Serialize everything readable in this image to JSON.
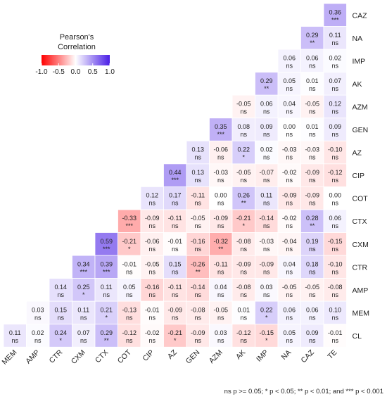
{
  "chart_data": {
    "type": "heatmap",
    "subtype": "lower-triangle correlation matrix",
    "metric": "Pearson's correlation",
    "rows": [
      "CAZ",
      "NA",
      "IMP",
      "AK",
      "AZM",
      "GEN",
      "AZ",
      "CIP",
      "COT",
      "CTX",
      "CXM",
      "CTR",
      "AMP",
      "MEM",
      "CL"
    ],
    "cols": [
      "MEM",
      "AMP",
      "CTR",
      "CXM",
      "CTX",
      "COT",
      "CIP",
      "AZ",
      "GEN",
      "AZM",
      "AK",
      "IMP",
      "NA",
      "CAZ",
      "TE"
    ],
    "values": [
      [
        0.36
      ],
      [
        0.29,
        0.11
      ],
      [
        0.06,
        0.06,
        0.02
      ],
      [
        0.29,
        0.05,
        0.01,
        0.07
      ],
      [
        -0.05,
        0.06,
        0.04,
        -0.05,
        0.12
      ],
      [
        0.35,
        0.08,
        0.09,
        0.0,
        0.01,
        0.09
      ],
      [
        0.13,
        -0.06,
        0.22,
        0.02,
        -0.03,
        -0.03,
        -0.1
      ],
      [
        0.44,
        0.13,
        -0.03,
        -0.05,
        -0.07,
        -0.02,
        -0.09,
        -0.12
      ],
      [
        0.12,
        0.17,
        -0.11,
        0.0,
        0.26,
        0.11,
        -0.09,
        -0.09,
        0.0
      ],
      [
        -0.33,
        -0.09,
        -0.11,
        -0.05,
        -0.09,
        -0.21,
        -0.14,
        -0.02,
        0.28,
        0.06
      ],
      [
        0.59,
        -0.21,
        -0.06,
        -0.01,
        -0.16,
        -0.32,
        -0.08,
        -0.03,
        -0.04,
        0.19,
        -0.15
      ],
      [
        0.34,
        0.39,
        -0.01,
        -0.05,
        0.15,
        -0.26,
        -0.11,
        -0.09,
        -0.09,
        0.04,
        0.18,
        -0.1
      ],
      [
        0.14,
        0.25,
        0.11,
        0.05,
        -0.16,
        -0.11,
        -0.14,
        0.04,
        -0.08,
        0.03,
        -0.05,
        -0.05,
        -0.08
      ],
      [
        0.03,
        0.15,
        0.11,
        0.21,
        -0.13,
        -0.01,
        -0.09,
        -0.08,
        -0.05,
        0.01,
        0.22,
        0.06,
        0.06,
        0.1
      ],
      [
        0.11,
        0.02,
        0.24,
        0.07,
        0.29,
        -0.12,
        -0.02,
        -0.21,
        -0.09,
        0.03,
        -0.12,
        -0.15,
        0.05,
        0.09,
        -0.01
      ]
    ],
    "significance": [
      [
        "***"
      ],
      [
        "**",
        "ns"
      ],
      [
        "ns",
        "ns",
        "ns"
      ],
      [
        "**",
        "ns",
        "ns",
        "ns"
      ],
      [
        "ns",
        "ns",
        "ns",
        "ns",
        "ns"
      ],
      [
        "***",
        "ns",
        "ns",
        "ns",
        "ns",
        "ns"
      ],
      [
        "ns",
        "ns",
        "*",
        "ns",
        "ns",
        "ns",
        "ns"
      ],
      [
        "***",
        "ns",
        "ns",
        "ns",
        "ns",
        "ns",
        "ns",
        "ns"
      ],
      [
        "ns",
        "ns",
        "ns",
        "ns",
        "**",
        "ns",
        "ns",
        "ns",
        "ns"
      ],
      [
        "***",
        "ns",
        "ns",
        "ns",
        "ns",
        "*",
        "ns",
        "ns",
        "**",
        "ns"
      ],
      [
        "***",
        "*",
        "ns",
        "ns",
        "ns",
        "**",
        "ns",
        "ns",
        "ns",
        "ns",
        "ns"
      ],
      [
        "***",
        "***",
        "ns",
        "ns",
        "ns",
        "**",
        "ns",
        "ns",
        "ns",
        "ns",
        "ns",
        "ns"
      ],
      [
        "ns",
        "*",
        "ns",
        "ns",
        "ns",
        "ns",
        "ns",
        "ns",
        "ns",
        "ns",
        "ns",
        "ns",
        "ns"
      ],
      [
        "ns",
        "ns",
        "ns",
        "*",
        "ns",
        "ns",
        "ns",
        "ns",
        "ns",
        "ns",
        "*",
        "ns",
        "ns",
        "ns"
      ],
      [
        "ns",
        "ns",
        "*",
        "ns",
        "**",
        "ns",
        "ns",
        "*",
        "ns",
        "ns",
        "ns",
        "*",
        "ns",
        "ns",
        "ns"
      ]
    ],
    "legend": {
      "title_line1": "Pearson's",
      "title_line2": "Correlation",
      "ticks": [
        "-1.0",
        "-0.5",
        "0.0",
        "0.5",
        "1.0"
      ],
      "range": [
        -1,
        1
      ],
      "colors": {
        "low": "#ff0000",
        "mid": "#ffffff",
        "high": "#4a1ee6"
      }
    },
    "footnote": "ns p >= 0.05; * p < 0.05; ** p < 0.01; and *** p < 0.001"
  }
}
